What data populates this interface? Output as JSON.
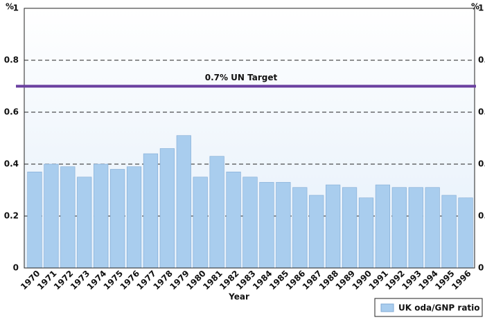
{
  "chart_data": {
    "type": "bar",
    "x_label": "Year",
    "y_unit": "%",
    "categories": [
      "1970",
      "1971",
      "1972",
      "1973",
      "1974",
      "1975",
      "1976",
      "1977",
      "1978",
      "1979",
      "1980",
      "1981",
      "1982",
      "1983",
      "1984",
      "1985",
      "1986",
      "1987",
      "1988",
      "1989",
      "1990",
      "1991",
      "1992",
      "1993",
      "1994",
      "1995",
      "1996"
    ],
    "series": [
      {
        "name": "UK oda/GNP ratio",
        "color": "#a9cdee",
        "values": [
          0.37,
          0.4,
          0.39,
          0.35,
          0.4,
          0.38,
          0.39,
          0.44,
          0.46,
          0.51,
          0.35,
          0.43,
          0.37,
          0.35,
          0.33,
          0.33,
          0.31,
          0.28,
          0.32,
          0.31,
          0.27,
          0.32,
          0.31,
          0.31,
          0.31,
          0.28,
          0.27
        ]
      }
    ],
    "target": {
      "value": 0.7,
      "label": "0.7% UN Target",
      "color": "#6a3fa0"
    },
    "ylim": [
      0,
      1
    ],
    "yticks": [
      0,
      0.2,
      0.4,
      0.6,
      0.8,
      1
    ],
    "grid": true,
    "legend": "bottom-right"
  }
}
